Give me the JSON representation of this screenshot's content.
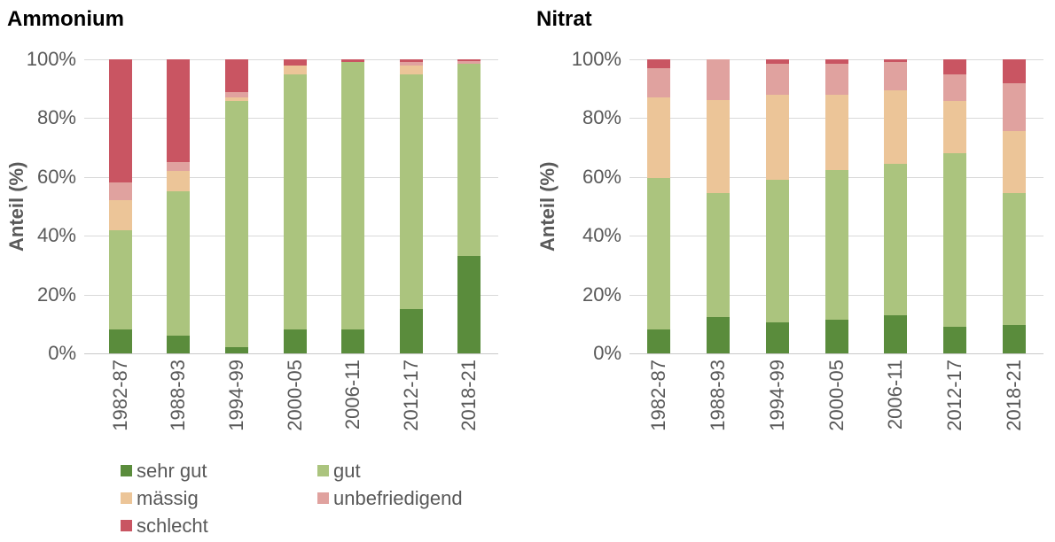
{
  "page": {
    "background": "#ffffff"
  },
  "colors": {
    "sehr_gut": "#5A8C3C",
    "gut": "#ABC47E",
    "maessig": "#ECC598",
    "unbefriedigend": "#E0A29F",
    "schlecht": "#C95562",
    "gridline": "#D9D9D9",
    "axis_text": "#595959",
    "title_text": "#000000"
  },
  "legend": {
    "items": [
      {
        "label": "sehr gut",
        "color": "#5A8C3C"
      },
      {
        "label": "gut",
        "color": "#ABC47E"
      },
      {
        "label": "mässig",
        "color": "#ECC598"
      },
      {
        "label": "unbefriedigend",
        "color": "#E0A29F"
      },
      {
        "label": "schlecht",
        "color": "#C95562"
      }
    ]
  },
  "chart_data": [
    {
      "type": "bar",
      "stacked": true,
      "title": "Ammonium",
      "xlabel": "",
      "ylabel": "Anteil (%)",
      "ylim": [
        0,
        100
      ],
      "grid": true,
      "y_tick_labels": [
        "0%",
        "20%",
        "40%",
        "60%",
        "80%",
        "100%"
      ],
      "categories": [
        "1982-87",
        "1988-93",
        "1994-99",
        "2000-05",
        "2006-11",
        "2012-17",
        "2018-21"
      ],
      "series": [
        {
          "name": "sehr gut",
          "color": "#5A8C3C",
          "values": [
            8,
            6,
            2,
            8,
            8,
            15,
            33
          ]
        },
        {
          "name": "gut",
          "color": "#ABC47E",
          "values": [
            34,
            49,
            84,
            87,
            91,
            80,
            65.5
          ]
        },
        {
          "name": "mässig",
          "color": "#ECC598",
          "values": [
            10,
            7,
            1,
            3,
            0,
            3,
            0
          ]
        },
        {
          "name": "unbefriedigend",
          "color": "#E0A29F",
          "values": [
            6,
            3,
            2,
            0,
            0,
            1,
            1
          ]
        },
        {
          "name": "schlecht",
          "color": "#C95562",
          "values": [
            42,
            35,
            11,
            2,
            1,
            1,
            0.5
          ]
        }
      ],
      "legend_position": "bottom-left"
    },
    {
      "type": "bar",
      "stacked": true,
      "title": "Nitrat",
      "xlabel": "",
      "ylabel": "Anteil (%)",
      "ylim": [
        0,
        100
      ],
      "grid": true,
      "y_tick_labels": [
        "0%",
        "20%",
        "40%",
        "60%",
        "80%",
        "100%"
      ],
      "categories": [
        "1982-87",
        "1988-93",
        "1994-99",
        "2000-05",
        "2006-11",
        "2012-17",
        "2018-21"
      ],
      "series": [
        {
          "name": "sehr gut",
          "color": "#5A8C3C",
          "values": [
            8,
            12.5,
            10.5,
            11.5,
            13,
            9,
            9.5
          ]
        },
        {
          "name": "gut",
          "color": "#ABC47E",
          "values": [
            51.5,
            42,
            48.5,
            51,
            51.5,
            59,
            45
          ]
        },
        {
          "name": "mässig",
          "color": "#ECC598",
          "values": [
            27.5,
            31.5,
            29,
            25.5,
            25,
            18,
            21
          ]
        },
        {
          "name": "unbefriedigend",
          "color": "#E0A29F",
          "values": [
            10,
            14,
            10.5,
            10.5,
            9.5,
            9,
            16.5
          ]
        },
        {
          "name": "schlecht",
          "color": "#C95562",
          "values": [
            3,
            0,
            1.5,
            1.5,
            1,
            5,
            8
          ]
        }
      ],
      "legend_position": "none"
    }
  ]
}
